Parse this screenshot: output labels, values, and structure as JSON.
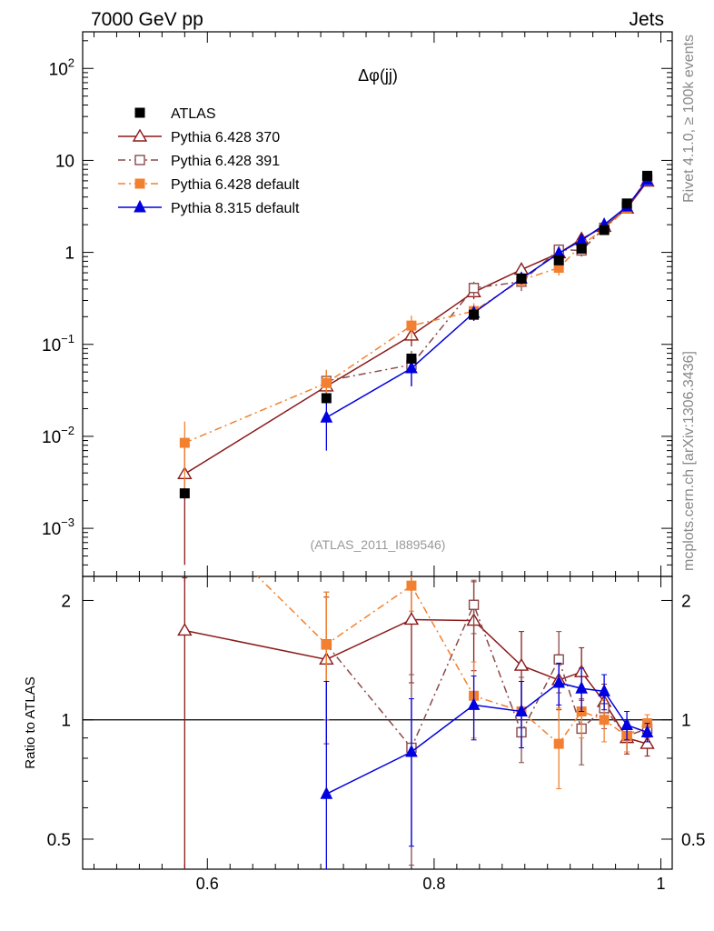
{
  "header": {
    "left_label": "7000 GeV pp",
    "right_label": "Jets"
  },
  "side_labels": {
    "rivet": "Rivet 4.1.0, ≥ 100k events",
    "mcplots": "mcplots.cern.ch [arXiv:1306.3436]"
  },
  "chart_data": {
    "type": "line",
    "title": "Δφ(jj)",
    "analysis_label": "(ATLAS_2011_I889546)",
    "xlabel": "",
    "ylabel_main": "",
    "ylabel_ratio": "Ratio to ATLAS",
    "xlim": [
      0.49,
      1.01
    ],
    "ylim_main": [
      0.0003,
      250
    ],
    "ylim_ratio": [
      0.42,
      2.3
    ],
    "y_scale_main": "log",
    "y_scale_ratio": "log",
    "legend_position": "top-left",
    "x_ticks": [
      {
        "value": 0.6,
        "label": "0.6"
      },
      {
        "value": 0.8,
        "label": "0.8"
      },
      {
        "value": 1.0,
        "label": "1"
      }
    ],
    "y_ticks_main": [
      {
        "value": 0.001,
        "base": "10",
        "exp": "−3"
      },
      {
        "value": 0.01,
        "base": "10",
        "exp": "−2"
      },
      {
        "value": 0.1,
        "base": "10",
        "exp": "−1"
      },
      {
        "value": 1,
        "base": "1",
        "exp": ""
      },
      {
        "value": 10,
        "base": "10",
        "exp": ""
      },
      {
        "value": 100,
        "base": "10",
        "exp": "2"
      }
    ],
    "y_ticks_ratio": [
      {
        "value": 0.5,
        "label": "0.5"
      },
      {
        "value": 1,
        "label": "1"
      },
      {
        "value": 2,
        "label": "2"
      }
    ],
    "x": [
      0.58,
      0.705,
      0.78,
      0.835,
      0.877,
      0.91,
      0.93,
      0.95,
      0.97,
      0.988
    ],
    "series": [
      {
        "name": "ATLAS",
        "color": "#000000",
        "marker": "square-filled",
        "line": "none",
        "values": [
          0.0024,
          0.026,
          0.07,
          0.21,
          0.52,
          0.82,
          1.1,
          1.75,
          3.4,
          6.8
        ],
        "errors": [
          0.0002,
          0.003,
          0.008,
          0.025,
          0.05,
          0.08,
          0.1,
          0.15,
          0.25,
          0.5
        ]
      },
      {
        "name": "Pythia 6.428 370",
        "color": "#8b1a1a",
        "marker": "triangle-open",
        "line": "solid",
        "values": [
          0.0039,
          0.035,
          0.125,
          0.37,
          0.65,
          0.98,
          1.4,
          1.9,
          3.0,
          5.9
        ],
        "errors": [
          0.0035,
          0.01,
          0.03,
          0.06,
          0.1,
          0.1,
          0.15,
          0.15,
          0.2,
          0.3
        ],
        "ratio": [
          1.68,
          1.42,
          1.79,
          1.78,
          1.37,
          1.26,
          1.32,
          1.11,
          0.9,
          0.87
        ],
        "ratio_errors_up": [
          0.6,
          0.62,
          0.55,
          0.45,
          0.3,
          0.2,
          0.2,
          0.12,
          0.08,
          0.06
        ],
        "ratio_errors_down": [
          1.3,
          0.55,
          0.55,
          0.45,
          0.3,
          0.2,
          0.2,
          0.12,
          0.08,
          0.06
        ]
      },
      {
        "name": "Pythia 6.428 391",
        "color": "#8b4a4a",
        "marker": "square-open",
        "line": "dashdot",
        "values": [
          null,
          0.04,
          0.06,
          0.41,
          0.48,
          1.07,
          1.05,
          1.85,
          3.1,
          6.2
        ],
        "errors": [
          null,
          0.012,
          0.025,
          0.07,
          0.1,
          0.15,
          0.15,
          0.2,
          0.25,
          0.4
        ],
        "ratio": [
          null,
          1.55,
          0.85,
          1.95,
          0.93,
          1.42,
          0.95,
          1.07,
          0.91,
          0.95
        ],
        "ratio_errors_up": [
          null,
          0.55,
          0.45,
          0.3,
          0.35,
          0.25,
          0.18,
          0.12,
          0.08,
          0.05
        ],
        "ratio_errors_down": [
          null,
          0.55,
          0.42,
          0.3,
          0.15,
          0.25,
          0.18,
          0.12,
          0.08,
          0.05
        ]
      },
      {
        "name": "Pythia 6.428 default",
        "color": "#f28030",
        "marker": "square-filled",
        "line": "dashdot",
        "values": [
          0.0085,
          0.038,
          0.16,
          0.23,
          0.5,
          0.68,
          1.2,
          1.8,
          3.0,
          6.5
        ],
        "errors": [
          0.006,
          0.015,
          0.045,
          0.05,
          0.08,
          0.12,
          0.15,
          0.2,
          0.2,
          0.4
        ],
        "ratio": [
          3.5,
          1.55,
          2.18,
          1.15,
          1.05,
          0.87,
          1.05,
          1.0,
          0.91,
          0.98
        ],
        "ratio_errors_up": [
          1.0,
          0.55,
          0.3,
          0.25,
          0.2,
          0.2,
          0.15,
          0.12,
          0.08,
          0.05
        ],
        "ratio_errors_down": [
          1.0,
          0.55,
          0.3,
          0.25,
          0.2,
          0.2,
          0.15,
          0.12,
          0.08,
          0.05
        ]
      },
      {
        "name": "Pythia 8.315 default",
        "color": "#0000e0",
        "marker": "triangle-filled",
        "line": "solid",
        "values": [
          null,
          0.016,
          0.055,
          0.22,
          0.52,
          0.98,
          1.35,
          2.0,
          3.15,
          6.1
        ],
        "errors": [
          null,
          0.009,
          0.02,
          0.04,
          0.07,
          0.1,
          0.12,
          0.15,
          0.2,
          0.3
        ],
        "ratio": [
          null,
          0.65,
          0.83,
          1.09,
          1.05,
          1.24,
          1.2,
          1.18,
          0.97,
          0.93
        ],
        "ratio_errors_up": [
          null,
          0.6,
          0.3,
          0.2,
          0.2,
          0.15,
          0.15,
          0.12,
          0.08,
          0.05
        ],
        "ratio_errors_down": [
          null,
          0.3,
          0.35,
          0.2,
          0.2,
          0.15,
          0.15,
          0.12,
          0.08,
          0.05
        ]
      }
    ]
  }
}
